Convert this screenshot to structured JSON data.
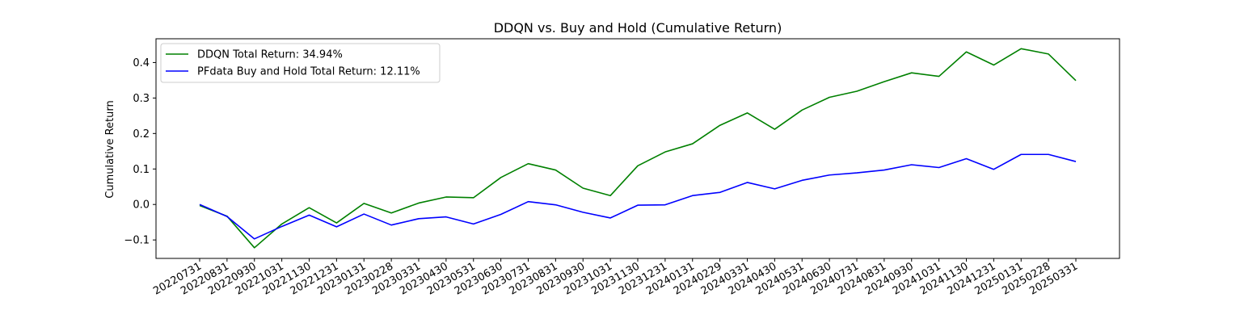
{
  "chart_data": {
    "type": "line",
    "title": "DDQN vs. Buy and Hold (Cumulative Return)",
    "xlabel": "",
    "ylabel": "Cumulative Return",
    "ylim": [
      -0.152,
      0.467
    ],
    "yticks": [
      -0.1,
      0.0,
      0.1,
      0.2,
      0.3,
      0.4
    ],
    "ytick_labels": [
      "−0.1",
      "0.0",
      "0.1",
      "0.2",
      "0.3",
      "0.4"
    ],
    "grid": false,
    "legend_position": "top-left",
    "categories": [
      "20220731",
      "20220831",
      "20220930",
      "20221031",
      "20221130",
      "20221231",
      "20230131",
      "20230228",
      "20230331",
      "20230430",
      "20230531",
      "20230630",
      "20230731",
      "20230831",
      "20230930",
      "20231031",
      "20231130",
      "20231231",
      "20240131",
      "20240229",
      "20240331",
      "20240430",
      "20240531",
      "20240630",
      "20240731",
      "20240831",
      "20240930",
      "20241031",
      "20241130",
      "20241231",
      "20250131",
      "20250228",
      "20250331"
    ],
    "series": [
      {
        "name": "DDQN Total Return: 34.94%",
        "color": "#008000",
        "values": [
          -0.003,
          -0.033,
          -0.122,
          -0.055,
          -0.009,
          -0.052,
          0.003,
          -0.024,
          0.004,
          0.021,
          0.019,
          0.076,
          0.115,
          0.097,
          0.046,
          0.025,
          0.109,
          0.148,
          0.171,
          0.223,
          0.258,
          0.212,
          0.266,
          0.302,
          0.319,
          0.346,
          0.371,
          0.361,
          0.43,
          0.393,
          0.439,
          0.424,
          0.349
        ]
      },
      {
        "name": "PFdata Buy and Hold Total Return: 12.11%",
        "color": "#0000ff",
        "values": [
          0.0,
          -0.034,
          -0.097,
          -0.062,
          -0.03,
          -0.063,
          -0.027,
          -0.058,
          -0.04,
          -0.035,
          -0.055,
          -0.028,
          0.008,
          -0.001,
          -0.022,
          -0.038,
          -0.002,
          -0.001,
          0.025,
          0.034,
          0.062,
          0.044,
          0.068,
          0.083,
          0.089,
          0.097,
          0.112,
          0.104,
          0.129,
          0.099,
          0.141,
          0.141,
          0.121
        ]
      }
    ]
  }
}
